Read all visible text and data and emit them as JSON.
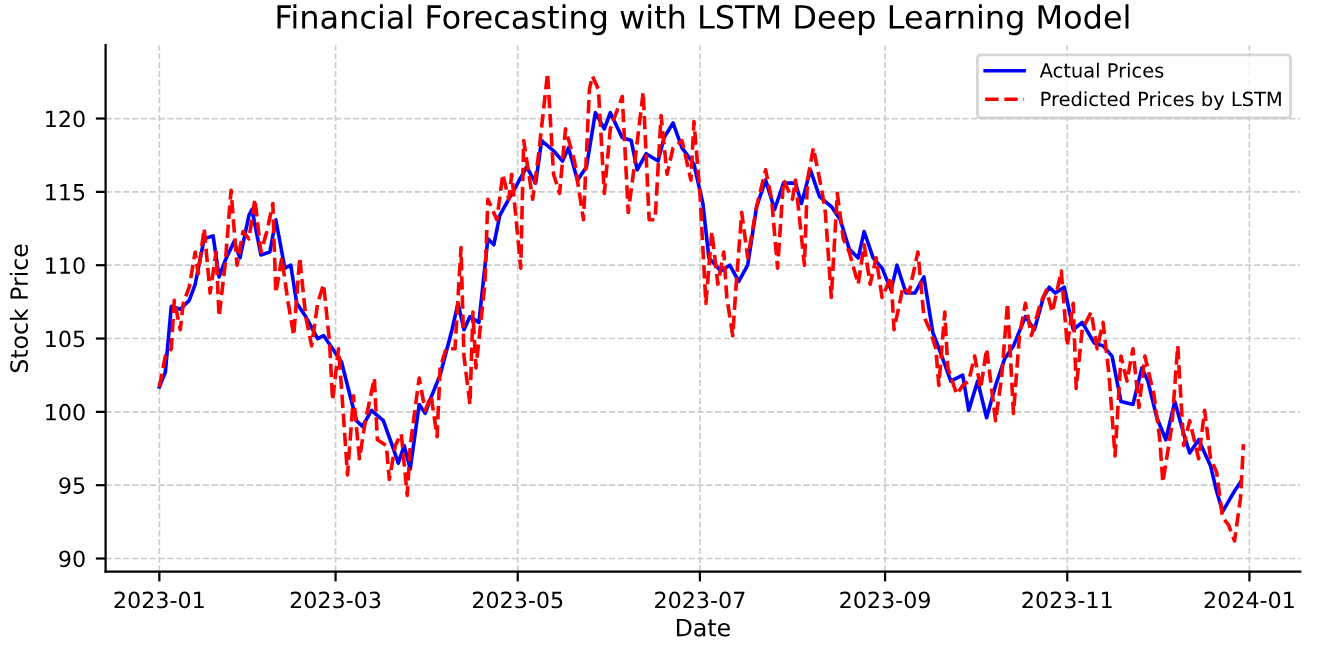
{
  "chart_data": {
    "type": "line",
    "title": "Financial Forecasting with LSTM Deep Learning Model",
    "xlabel": "Date",
    "ylabel": "Stock Price",
    "xlim": [
      "2022-12-14",
      "2024-01-18"
    ],
    "ylim": [
      89.1,
      125
    ],
    "xticks": [
      {
        "value": "2023-01-01",
        "label": "2023-01"
      },
      {
        "value": "2023-03-01",
        "label": "2023-03"
      },
      {
        "value": "2023-05-01",
        "label": "2023-05"
      },
      {
        "value": "2023-07-01",
        "label": "2023-07"
      },
      {
        "value": "2023-09-01",
        "label": "2023-09"
      },
      {
        "value": "2023-11-01",
        "label": "2023-11"
      },
      {
        "value": "2024-01-01",
        "label": "2024-01"
      }
    ],
    "yticks": [
      90,
      95,
      100,
      105,
      110,
      115,
      120
    ],
    "grid": true,
    "legend": "top right",
    "series": [
      {
        "name": "Actual Prices",
        "color": "#0000ff",
        "line_style": "solid",
        "x": [
          "2023-01-01",
          "2023-01-03",
          "2023-01-05",
          "2023-01-08",
          "2023-01-11",
          "2023-01-13",
          "2023-01-16",
          "2023-01-19",
          "2023-01-21",
          "2023-01-23",
          "2023-01-26",
          "2023-01-28",
          "2023-01-31",
          "2023-02-01",
          "2023-02-04",
          "2023-02-07",
          "2023-02-09",
          "2023-02-12",
          "2023-02-14",
          "2023-02-16",
          "2023-02-19",
          "2023-02-23",
          "2023-02-25",
          "2023-02-28",
          "2023-03-03",
          "2023-03-06",
          "2023-03-08",
          "2023-03-10",
          "2023-03-13",
          "2023-03-17",
          "2023-03-20",
          "2023-03-22",
          "2023-03-24",
          "2023-03-26",
          "2023-03-29",
          "2023-03-31",
          "2023-04-02",
          "2023-04-05",
          "2023-04-09",
          "2023-04-11",
          "2023-04-13",
          "2023-04-15",
          "2023-04-18",
          "2023-04-21",
          "2023-04-23",
          "2023-04-25",
          "2023-04-28",
          "2023-05-01",
          "2023-05-04",
          "2023-05-07",
          "2023-05-09",
          "2023-05-13",
          "2023-05-16",
          "2023-05-18",
          "2023-05-21",
          "2023-05-24",
          "2023-05-27",
          "2023-05-30",
          "2023-06-01",
          "2023-06-05",
          "2023-06-08",
          "2023-06-10",
          "2023-06-13",
          "2023-06-17",
          "2023-06-19",
          "2023-06-22",
          "2023-06-25",
          "2023-06-29",
          "2023-07-02",
          "2023-07-04",
          "2023-07-08",
          "2023-07-11",
          "2023-07-14",
          "2023-07-17",
          "2023-07-20",
          "2023-07-23",
          "2023-07-26",
          "2023-07-29",
          "2023-08-02",
          "2023-08-04",
          "2023-08-07",
          "2023-08-10",
          "2023-08-14",
          "2023-08-17",
          "2023-08-20",
          "2023-08-23",
          "2023-08-25",
          "2023-08-28",
          "2023-08-31",
          "2023-09-03",
          "2023-09-05",
          "2023-09-08",
          "2023-09-11",
          "2023-09-14",
          "2023-09-17",
          "2023-09-20",
          "2023-09-23",
          "2023-09-27",
          "2023-09-29",
          "2023-10-02",
          "2023-10-05",
          "2023-10-08",
          "2023-10-11",
          "2023-10-14",
          "2023-10-18",
          "2023-10-21",
          "2023-10-24",
          "2023-10-26",
          "2023-10-28",
          "2023-10-31",
          "2023-11-03",
          "2023-11-06",
          "2023-11-10",
          "2023-11-13",
          "2023-11-16",
          "2023-11-19",
          "2023-11-23",
          "2023-11-26",
          "2023-11-28",
          "2023-12-01",
          "2023-12-04",
          "2023-12-07",
          "2023-12-10",
          "2023-12-12",
          "2023-12-15",
          "2023-12-19",
          "2023-12-21",
          "2023-12-23",
          "2023-12-27",
          "2023-12-29"
        ],
        "values": [
          101.7,
          102.7,
          107.2,
          107,
          107.6,
          108.7,
          111.8,
          112,
          109.2,
          110.3,
          111.6,
          110.5,
          113.4,
          113.8,
          110.7,
          110.9,
          113.1,
          109.8,
          110,
          107.4,
          106.5,
          105,
          105.2,
          104.3,
          103.4,
          101,
          99.4,
          99,
          100.1,
          99.4,
          97.7,
          96.5,
          97.7,
          96.1,
          100.5,
          99.9,
          101,
          102.5,
          105.6,
          107.4,
          105.6,
          106.5,
          106.1,
          111.8,
          111.4,
          113.4,
          114.5,
          115.6,
          116.7,
          115.6,
          118.5,
          117.8,
          117.1,
          118,
          115.8,
          116.7,
          120.4,
          119.3,
          120.4,
          118.7,
          118.5,
          116.5,
          117.6,
          117.1,
          118.7,
          119.7,
          118,
          116.9,
          114.2,
          110.5,
          109.6,
          110,
          108.9,
          110,
          114,
          115.8,
          113.8,
          115.6,
          115.6,
          114.2,
          116.5,
          114.7,
          114,
          113.1,
          111.1,
          110.5,
          112.3,
          110.5,
          109.8,
          108.3,
          110,
          108.1,
          108.1,
          109.2,
          105.4,
          103.8,
          102.1,
          102.5,
          100.1,
          102.1,
          99.6,
          101.8,
          103.6,
          104.5,
          106.5,
          105.6,
          107.8,
          108.5,
          108.1,
          108.5,
          105.6,
          106.1,
          104.7,
          104.5,
          103.8,
          100.7,
          100.5,
          103,
          102.1,
          99.6,
          98.1,
          100.7,
          98.5,
          97.2,
          98.1,
          96.3,
          94.6,
          93.2,
          94.6,
          95.2
        ]
      },
      {
        "name": "Predicted Prices by LSTM",
        "color": "#ff0000",
        "line_style": "dashed",
        "x": [
          "2023-01-01",
          "2023-01-03",
          "2023-01-05",
          "2023-01-06",
          "2023-01-08",
          "2023-01-09",
          "2023-01-11",
          "2023-01-13",
          "2023-01-14",
          "2023-01-16",
          "2023-01-18",
          "2023-01-20",
          "2023-01-21",
          "2023-01-23",
          "2023-01-25",
          "2023-01-27",
          "2023-01-29",
          "2023-01-31",
          "2023-02-02",
          "2023-02-04",
          "2023-02-06",
          "2023-02-08",
          "2023-02-09",
          "2023-02-11",
          "2023-02-13",
          "2023-02-15",
          "2023-02-17",
          "2023-02-19",
          "2023-02-21",
          "2023-02-23",
          "2023-02-25",
          "2023-02-27",
          "2023-02-28",
          "2023-03-02",
          "2023-03-03",
          "2023-03-05",
          "2023-03-07",
          "2023-03-09",
          "2023-03-11",
          "2023-03-14",
          "2023-03-15",
          "2023-03-18",
          "2023-03-19",
          "2023-03-21",
          "2023-03-23",
          "2023-03-25",
          "2023-03-26",
          "2023-03-29",
          "2023-03-31",
          "2023-04-02",
          "2023-04-04",
          "2023-04-05",
          "2023-04-07",
          "2023-04-10",
          "2023-04-12",
          "2023-04-13",
          "2023-04-15",
          "2023-04-16",
          "2023-04-17",
          "2023-04-20",
          "2023-04-21",
          "2023-04-24",
          "2023-04-26",
          "2023-04-28",
          "2023-04-29",
          "2023-05-02",
          "2023-05-03",
          "2023-05-06",
          "2023-05-08",
          "2023-05-11",
          "2023-05-13",
          "2023-05-15",
          "2023-05-17",
          "2023-05-20",
          "2023-05-23",
          "2023-05-25",
          "2023-05-26",
          "2023-05-28",
          "2023-05-30",
          "2023-06-01",
          "2023-06-05",
          "2023-06-07",
          "2023-06-09",
          "2023-06-12",
          "2023-06-14",
          "2023-06-16",
          "2023-06-18",
          "2023-06-20",
          "2023-06-22",
          "2023-06-25",
          "2023-06-28",
          "2023-06-29",
          "2023-07-01",
          "2023-07-03",
          "2023-07-05",
          "2023-07-07",
          "2023-07-09",
          "2023-07-10",
          "2023-07-12",
          "2023-07-13",
          "2023-07-15",
          "2023-07-17",
          "2023-07-20",
          "2023-07-23",
          "2023-07-25",
          "2023-07-27",
          "2023-07-29",
          "2023-08-01",
          "2023-08-02",
          "2023-08-05",
          "2023-08-06",
          "2023-08-08",
          "2023-08-11",
          "2023-08-12",
          "2023-08-14",
          "2023-08-16",
          "2023-08-18",
          "2023-08-20",
          "2023-08-23",
          "2023-08-25",
          "2023-08-27",
          "2023-08-29",
          "2023-08-31",
          "2023-09-03",
          "2023-09-04",
          "2023-09-07",
          "2023-09-09",
          "2023-09-12",
          "2023-09-14",
          "2023-09-16",
          "2023-09-18",
          "2023-09-19",
          "2023-09-21",
          "2023-09-22",
          "2023-09-25",
          "2023-09-27",
          "2023-09-29",
          "2023-10-01",
          "2023-10-03",
          "2023-10-05",
          "2023-10-08",
          "2023-10-10",
          "2023-10-12",
          "2023-10-14",
          "2023-10-16",
          "2023-10-18",
          "2023-10-20",
          "2023-10-23",
          "2023-10-25",
          "2023-10-27",
          "2023-10-30",
          "2023-11-01",
          "2023-11-03",
          "2023-11-04",
          "2023-11-06",
          "2023-11-09",
          "2023-11-11",
          "2023-11-13",
          "2023-11-15",
          "2023-11-17",
          "2023-11-19",
          "2023-11-21",
          "2023-11-23",
          "2023-11-25",
          "2023-11-27",
          "2023-11-30",
          "2023-12-02",
          "2023-12-03",
          "2023-12-06",
          "2023-12-08",
          "2023-12-10",
          "2023-12-12",
          "2023-12-15",
          "2023-12-17",
          "2023-12-19",
          "2023-12-21",
          "2023-12-23",
          "2023-12-25",
          "2023-12-27",
          "2023-12-29",
          "2023-12-30"
        ],
        "values": [
          101.7,
          103.8,
          104.3,
          107.6,
          105.6,
          107.4,
          108.5,
          110.9,
          109.4,
          112.5,
          108.1,
          110.9,
          106.5,
          110,
          115.1,
          110,
          112.3,
          111.8,
          114.5,
          110.9,
          112.3,
          114.2,
          108.1,
          110.5,
          107.6,
          105.2,
          110.5,
          106.5,
          104.5,
          107.4,
          108.7,
          104.7,
          100.8,
          104.3,
          101.6,
          95.7,
          101.1,
          96.8,
          99.4,
          102.3,
          98.1,
          97.7,
          95.4,
          97.7,
          98.5,
          94.3,
          97.7,
          102.3,
          100.1,
          101.1,
          98.3,
          103,
          104.3,
          104.3,
          111.2,
          103.8,
          100.5,
          106.8,
          103,
          108.7,
          114.5,
          113.1,
          116.2,
          114.5,
          116.2,
          109.8,
          118.5,
          114.5,
          117.6,
          123.1,
          116.2,
          114.9,
          119.3,
          117.1,
          113.1,
          122,
          122.9,
          122,
          114.9,
          119.3,
          121.5,
          113.6,
          116.7,
          121.8,
          113.1,
          113.1,
          120.2,
          116.2,
          118,
          118.5,
          115.8,
          119.8,
          114.9,
          107.4,
          112.3,
          108.7,
          110.9,
          107.8,
          105.2,
          108.3,
          113.6,
          110.5,
          114,
          116.5,
          114.5,
          109.8,
          115.8,
          114.5,
          115.8,
          110,
          115.8,
          118,
          114.9,
          113.6,
          107.8,
          114.9,
          111.8,
          110.9,
          108.7,
          111.4,
          108.7,
          110.5,
          107.8,
          109.2,
          105.6,
          108.5,
          108.1,
          110.9,
          106.5,
          105.6,
          104.3,
          101.8,
          106.8,
          103,
          101.2,
          101.8,
          102.1,
          103.8,
          101.6,
          104.3,
          99.4,
          102.3,
          107.4,
          99.9,
          105.2,
          107.4,
          105.2,
          107.4,
          108.3,
          106.8,
          109.6,
          104.5,
          107.4,
          101.6,
          105.6,
          106.8,
          104.3,
          106.1,
          102.5,
          97,
          103.8,
          102.1,
          104.3,
          100.3,
          103.8,
          101.2,
          98.1,
          95.2,
          99,
          104.5,
          97.7,
          99.4,
          96.8,
          100.1,
          96.8,
          95.9,
          92.8,
          92.3,
          91.2,
          94.1,
          97.8
        ]
      }
    ]
  }
}
